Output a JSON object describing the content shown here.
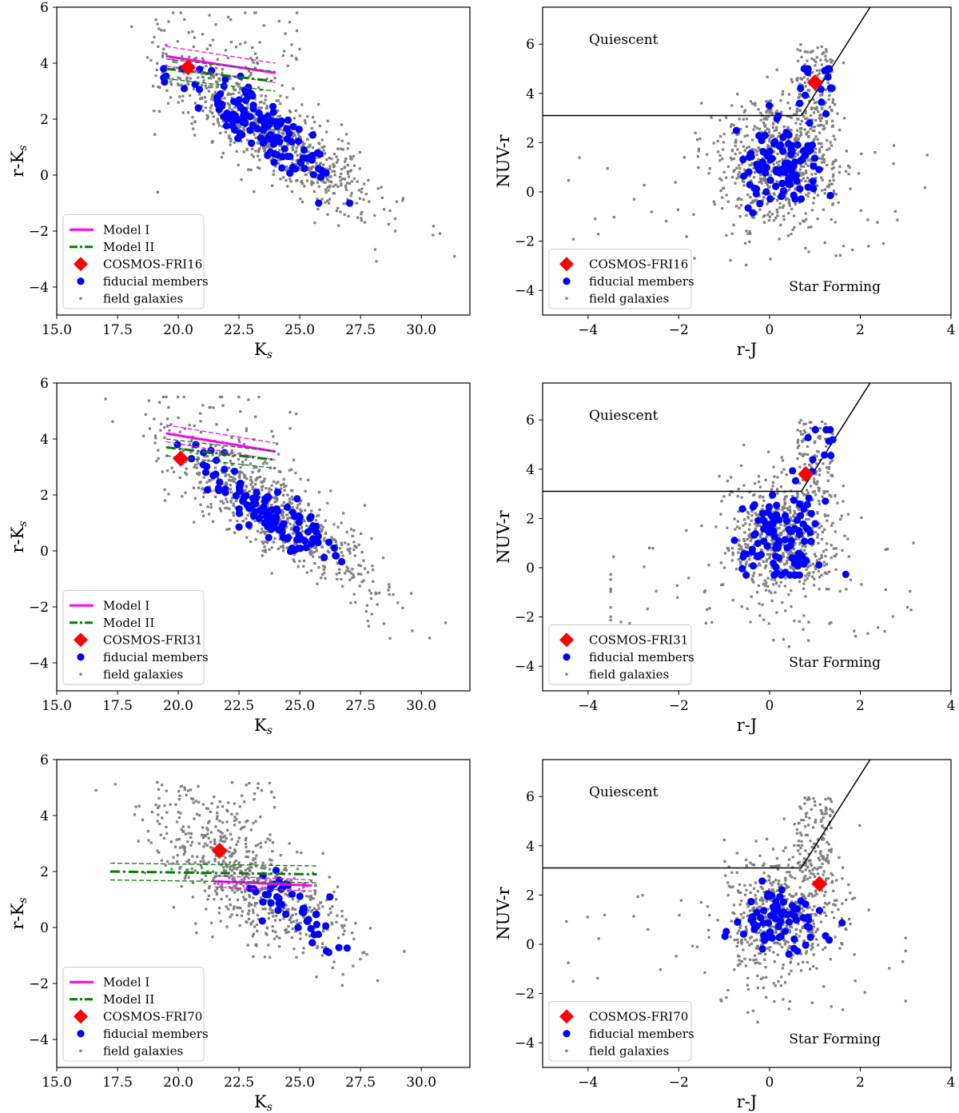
{
  "figure": {
    "background": "#ffffff"
  },
  "colors": {
    "model1": "#ff00ff",
    "model2": "#008000",
    "cosmos": "#ff0000",
    "members": "#0000ff",
    "field": "#808080",
    "axes": "#000000"
  },
  "chart_data": [
    {
      "type": "scatter",
      "id": "fri16-cm",
      "xlabel": "K",
      "xlabel_sub": "s",
      "ylabel": "r-K",
      "ylabel_sub": "s",
      "xlim": [
        15,
        32
      ],
      "ylim": [
        -5,
        6
      ],
      "xticks": [
        15,
        17.5,
        20,
        22.5,
        25,
        27.5,
        30
      ],
      "xticklabels": [
        "15.0",
        "17.5",
        "20.0",
        "22.5",
        "25.0",
        "27.5",
        "30.0"
      ],
      "yticks": [
        -4,
        -2,
        0,
        2,
        4,
        6
      ],
      "yticklabels": [
        "−4",
        "−2",
        "0",
        "2",
        "4",
        "6"
      ],
      "field": {
        "seed": 11,
        "count": 900,
        "model": "cm",
        "x_range": [
          17,
          31.5
        ],
        "y_range": [
          -5,
          5.8
        ]
      },
      "members": {
        "seed": 21,
        "count": 140,
        "model": "cm",
        "x_range": [
          19.4,
          27.5
        ],
        "y_range": [
          -1,
          3.8
        ]
      },
      "cosmos": {
        "name": "COSMOS-FRI16",
        "x": 20.4,
        "y": 3.85
      },
      "model_lines": [
        {
          "name": "Model I",
          "x": [
            19.5,
            24
          ],
          "y": [
            4.25,
            3.65
          ],
          "band": 0.35
        },
        {
          "name": "Model II",
          "x": [
            19.5,
            24
          ],
          "y": [
            3.8,
            3.35
          ],
          "band": 0.35
        }
      ],
      "legend": {
        "position": "lower-left",
        "entries": [
          "Model I",
          "Model II",
          "COSMOS-FRI16",
          "fiducial members",
          "field galaxies"
        ]
      }
    },
    {
      "type": "scatter",
      "id": "fri16-nuv",
      "xlabel": "r-J",
      "ylabel": "NUV-r",
      "xlim": [
        -5,
        4
      ],
      "ylim": [
        -5,
        7.5
      ],
      "xticks": [
        -4,
        -2,
        0,
        2,
        4
      ],
      "xticklabels": [
        "−4",
        "−2",
        "0",
        "2",
        "4"
      ],
      "yticks": [
        -4,
        -2,
        0,
        2,
        4,
        6
      ],
      "yticklabels": [
        "−4",
        "−2",
        "0",
        "2",
        "4",
        "6"
      ],
      "field": {
        "seed": 31,
        "count": 900,
        "model": "nuv",
        "x_range": [
          -4.5,
          3.6
        ],
        "y_range": [
          -4.8,
          7.1
        ]
      },
      "members": {
        "seed": 41,
        "count": 110,
        "model": "nuv",
        "x_range": [
          -0.9,
          2.8
        ],
        "y_range": [
          -2,
          5
        ]
      },
      "cosmos": {
        "name": "COSMOS-FRI16",
        "x": 1.0,
        "y": 4.45
      },
      "quiescent_boundary": {
        "y_flat": 3.1,
        "x_knee": 0.7,
        "slope": 2.9
      },
      "regions": [
        "Quiescent",
        "Star Forming"
      ],
      "legend": {
        "position": "lower-left",
        "entries": [
          "COSMOS-FRI16",
          "fiducial members",
          "field galaxies"
        ]
      }
    },
    {
      "type": "scatter",
      "id": "fri31-cm",
      "xlabel": "K",
      "xlabel_sub": "s",
      "ylabel": "r-K",
      "ylabel_sub": "s",
      "xlim": [
        15,
        32
      ],
      "ylim": [
        -5,
        6
      ],
      "xticks": [
        15,
        17.5,
        20,
        22.5,
        25,
        27.5,
        30
      ],
      "xticklabels": [
        "15.0",
        "17.5",
        "20.0",
        "22.5",
        "25.0",
        "27.5",
        "30.0"
      ],
      "yticks": [
        -4,
        -2,
        0,
        2,
        4,
        6
      ],
      "yticklabels": [
        "−4",
        "−2",
        "0",
        "2",
        "4",
        "6"
      ],
      "field": {
        "seed": 51,
        "count": 800,
        "model": "cm",
        "x_range": [
          17,
          31
        ],
        "y_range": [
          -4.2,
          5.5
        ]
      },
      "members": {
        "seed": 61,
        "count": 115,
        "model": "cm",
        "x_range": [
          19.8,
          28
        ],
        "y_range": [
          -1.1,
          3.8
        ]
      },
      "cosmos": {
        "name": "COSMOS-FRI31",
        "x": 20.1,
        "y": 3.3
      },
      "model_lines": [
        {
          "name": "Model I",
          "x": [
            19.5,
            24
          ],
          "y": [
            4.2,
            3.55
          ],
          "band": 0.3
        },
        {
          "name": "Model II",
          "x": [
            19.5,
            24
          ],
          "y": [
            3.7,
            3.25
          ],
          "band": 0.3
        }
      ],
      "legend": {
        "position": "lower-left",
        "entries": [
          "Model I",
          "Model II",
          "COSMOS-FRI31",
          "fiducial members",
          "field galaxies"
        ]
      }
    },
    {
      "type": "scatter",
      "id": "fri31-nuv",
      "xlabel": "r-J",
      "ylabel": "NUV-r",
      "xlim": [
        -5,
        4
      ],
      "ylim": [
        -5,
        7.5
      ],
      "xticks": [
        -4,
        -2,
        0,
        2,
        4
      ],
      "xticklabels": [
        "−4",
        "−2",
        "0",
        "2",
        "4"
      ],
      "yticks": [
        -4,
        -2,
        0,
        2,
        4,
        6
      ],
      "yticklabels": [
        "−4",
        "−2",
        "0",
        "2",
        "4",
        "6"
      ],
      "field": {
        "seed": 71,
        "count": 800,
        "model": "nuv",
        "x_range": [
          -3.5,
          3.6
        ],
        "y_range": [
          -3.6,
          6.9
        ]
      },
      "members": {
        "seed": 81,
        "count": 110,
        "model": "nuv",
        "x_range": [
          -2.5,
          2.4
        ],
        "y_range": [
          -0.3,
          5.6
        ]
      },
      "cosmos": {
        "name": "COSMOS-FRI31",
        "x": 0.8,
        "y": 3.8
      },
      "quiescent_boundary": {
        "y_flat": 3.1,
        "x_knee": 0.7,
        "slope": 2.9
      },
      "regions": [
        "Quiescent",
        "Star Forming"
      ],
      "legend": {
        "position": "lower-left",
        "entries": [
          "COSMOS-FRI31",
          "fiducial members",
          "field galaxies"
        ]
      }
    },
    {
      "type": "scatter",
      "id": "fri70-cm",
      "xlabel": "K",
      "xlabel_sub": "s",
      "ylabel": "r-K",
      "ylabel_sub": "s",
      "xlim": [
        15,
        32
      ],
      "ylim": [
        -5,
        6
      ],
      "xticks": [
        15,
        17.5,
        20,
        22.5,
        25,
        27.5,
        30
      ],
      "xticklabels": [
        "15.0",
        "17.5",
        "20.0",
        "22.5",
        "25.0",
        "27.5",
        "30.0"
      ],
      "yticks": [
        -4,
        -2,
        0,
        2,
        4,
        6
      ],
      "yticklabels": [
        "−4",
        "−2",
        "0",
        "2",
        "4",
        "6"
      ],
      "field": {
        "seed": 91,
        "count": 700,
        "model": "cm70",
        "x_range": [
          16.2,
          30.8
        ],
        "y_range": [
          -3.6,
          5.7
        ]
      },
      "members": {
        "seed": 101,
        "count": 45,
        "model": "cm70",
        "x_range": [
          22.2,
          27.2
        ],
        "y_range": [
          -1.2,
          2.9
        ]
      },
      "cosmos": {
        "name": "COSMOS-FRI70",
        "x": 21.7,
        "y": 2.75
      },
      "model_lines": [
        {
          "name": "Model I",
          "x": [
            21.5,
            25.5
          ],
          "y": [
            1.65,
            1.5
          ],
          "band": 0.2
        },
        {
          "name": "Model II",
          "x": [
            17.2,
            25.7
          ],
          "y": [
            2.0,
            1.9
          ],
          "band": 0.3
        }
      ],
      "legend": {
        "position": "lower-left",
        "entries": [
          "Model I",
          "Model II",
          "COSMOS-FRI70",
          "fiducial members",
          "field galaxies"
        ]
      }
    },
    {
      "type": "scatter",
      "id": "fri70-nuv",
      "xlabel": "r-J",
      "ylabel": "NUV-r",
      "xlim": [
        -5,
        4
      ],
      "ylim": [
        -5,
        7.5
      ],
      "xticks": [
        -4,
        -2,
        0,
        2,
        4
      ],
      "xticklabels": [
        "−4",
        "−2",
        "0",
        "2",
        "4"
      ],
      "yticks": [
        -4,
        -2,
        0,
        2,
        4,
        6
      ],
      "yticklabels": [
        "−4",
        "−2",
        "0",
        "2",
        "4",
        "6"
      ],
      "field": {
        "seed": 111,
        "count": 750,
        "model": "nuv",
        "x_range": [
          -4.7,
          3.0
        ],
        "y_range": [
          -4.2,
          6.2
        ]
      },
      "members": {
        "seed": 121,
        "count": 70,
        "model": "nuv70",
        "x_range": [
          -2.6,
          1.6
        ],
        "y_range": [
          -0.4,
          4.2
        ]
      },
      "cosmos": {
        "name": "COSMOS-FRI70",
        "x": 1.1,
        "y": 2.45
      },
      "quiescent_boundary": {
        "y_flat": 3.1,
        "x_knee": 0.7,
        "slope": 2.9
      },
      "regions": [
        "Quiescent",
        "Star Forming"
      ],
      "legend": {
        "position": "lower-left",
        "entries": [
          "COSMOS-FRI70",
          "fiducial members",
          "field galaxies"
        ]
      }
    }
  ]
}
